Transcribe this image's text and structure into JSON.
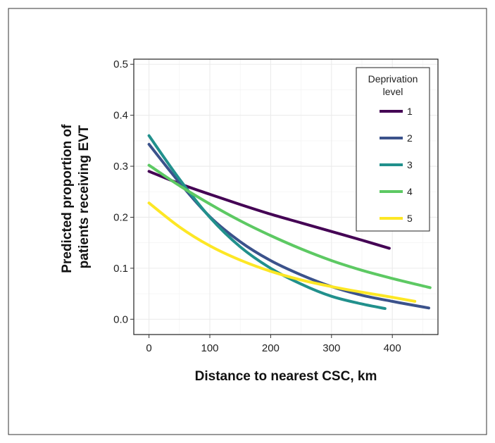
{
  "chart_data": {
    "type": "line",
    "title": "",
    "xlabel": "Distance to nearest CSC, km",
    "ylabel_lines": [
      "Predicted proportion of",
      "patients receiving EVT"
    ],
    "xlim": [
      -25,
      475
    ],
    "ylim": [
      -0.03,
      0.51
    ],
    "x_ticks": [
      0,
      100,
      200,
      300,
      400
    ],
    "x_tick_labels": [
      "0",
      "100",
      "200",
      "300",
      "400"
    ],
    "y_ticks": [
      0.0,
      0.1,
      0.2,
      0.3,
      0.4,
      0.5
    ],
    "y_tick_labels": [
      "0.0",
      "0.1",
      "0.2",
      "0.3",
      "0.4",
      "0.5"
    ],
    "x_minor": [
      50,
      150,
      250,
      350,
      450
    ],
    "y_minor": [
      0.05,
      0.15,
      0.25,
      0.35,
      0.45
    ],
    "grid": true,
    "legend": {
      "title_lines": [
        "Deprivation",
        "level"
      ],
      "placement": "top-right inside"
    },
    "series": [
      {
        "name": "1",
        "color": "#440154",
        "x": [
          0,
          50,
          100,
          150,
          200,
          250,
          300,
          350,
          395
        ],
        "y": [
          0.29,
          0.266,
          0.245,
          0.225,
          0.206,
          0.189,
          0.172,
          0.155,
          0.139
        ]
      },
      {
        "name": "2",
        "color": "#3B528B",
        "x": [
          0,
          50,
          100,
          150,
          200,
          250,
          300,
          350,
          400,
          460
        ],
        "y": [
          0.343,
          0.268,
          0.201,
          0.152,
          0.115,
          0.087,
          0.064,
          0.047,
          0.035,
          0.022
        ]
      },
      {
        "name": "3",
        "color": "#21908C",
        "x": [
          0,
          50,
          100,
          150,
          200,
          250,
          300,
          350,
          388
        ],
        "y": [
          0.36,
          0.275,
          0.2,
          0.142,
          0.1,
          0.069,
          0.045,
          0.03,
          0.021
        ]
      },
      {
        "name": "4",
        "color": "#5DC963",
        "x": [
          0,
          50,
          100,
          150,
          200,
          250,
          300,
          350,
          400,
          462
        ],
        "y": [
          0.302,
          0.262,
          0.226,
          0.193,
          0.164,
          0.138,
          0.115,
          0.096,
          0.08,
          0.062
        ]
      },
      {
        "name": "5",
        "color": "#FDE725",
        "x": [
          0,
          50,
          100,
          150,
          200,
          250,
          300,
          350,
          400,
          437
        ],
        "y": [
          0.228,
          0.181,
          0.144,
          0.116,
          0.094,
          0.077,
          0.064,
          0.053,
          0.043,
          0.035
        ]
      }
    ]
  }
}
